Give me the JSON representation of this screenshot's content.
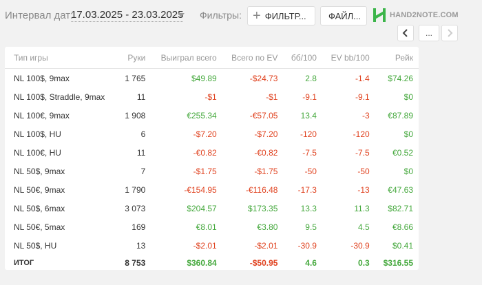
{
  "header": {
    "interval_label": "Интервал дат:",
    "interval_value": "17.03.2025 - 23.03.2025",
    "filters_label": "Фильтры:",
    "filter_button": "ФИЛЬТР...",
    "file_button": "ФАЙЛ...",
    "logo_text": "HAND2NOTE.COM",
    "nav_more": "..."
  },
  "colors": {
    "positive": "#44a83c",
    "negative": "#e0421f",
    "logo": "#3cb54a"
  },
  "table": {
    "columns": [
      "Тип игры",
      "Руки",
      "Выиграл всего",
      "Всего по EV",
      "бб/100",
      "EV bb/100",
      "Рейк"
    ],
    "rows": [
      [
        "NL 100$, 9max",
        "1 765",
        "$49.89",
        "-$24.73",
        "2.8",
        "-1.4",
        "$74.26"
      ],
      [
        "NL 100$, Straddle, 9max",
        "11",
        "-$1",
        "-$1",
        "-9.1",
        "-9.1",
        "$0"
      ],
      [
        "NL 100€, 9max",
        "1 908",
        "€255.34",
        "-€57.05",
        "13.4",
        "-3",
        "€87.89"
      ],
      [
        "NL 100$, HU",
        "6",
        "-$7.20",
        "-$7.20",
        "-120",
        "-120",
        "$0"
      ],
      [
        "NL 100€, HU",
        "11",
        "-€0.82",
        "-€0.82",
        "-7.5",
        "-7.5",
        "€0.52"
      ],
      [
        "NL 50$, 9max",
        "7",
        "-$1.75",
        "-$1.75",
        "-50",
        "-50",
        "$0"
      ],
      [
        "NL 50€, 9max",
        "1 790",
        "-€154.95",
        "-€116.48",
        "-17.3",
        "-13",
        "€47.63"
      ],
      [
        "NL 50$, 6max",
        "3 073",
        "$204.57",
        "$173.35",
        "13.3",
        "11.3",
        "$82.71"
      ],
      [
        "NL 50€, 5max",
        "169",
        "€8.01",
        "€3.80",
        "9.5",
        "4.5",
        "€8.66"
      ],
      [
        "NL 50$, HU",
        "13",
        "-$2.01",
        "-$2.01",
        "-30.9",
        "-30.9",
        "$0.41"
      ]
    ],
    "total": [
      "ИТОГ",
      "8 753",
      "$360.84",
      "-$50.95",
      "4.6",
      "0.3",
      "$316.55"
    ]
  }
}
